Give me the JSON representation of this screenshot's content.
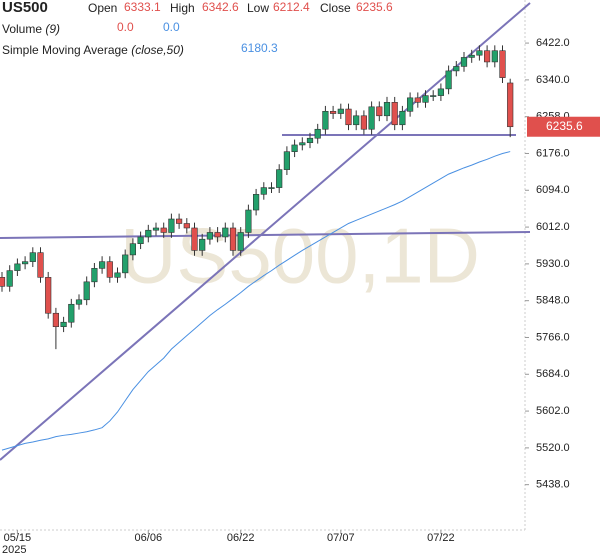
{
  "chart_data": {
    "type": "candlestick",
    "title": "US500",
    "ohlc_labels": [
      "Open",
      "High",
      "Low",
      "Close"
    ],
    "volume_label": "Volume",
    "volume_params": "(9)",
    "volume_values": [
      "0.0",
      "0.0"
    ],
    "sma_label": "Simple Moving Average",
    "sma_params": "(close,50)",
    "watermark": "US500,1D",
    "x_year": "2025",
    "up_color": "#22a06b",
    "down_color": "#e0504d",
    "sma_color": "#4a90e2",
    "categories": [
      null,
      null,
      "05/15",
      null,
      null,
      null,
      null,
      null,
      null,
      null,
      null,
      null,
      null,
      null,
      null,
      null,
      null,
      null,
      null,
      "06/06",
      null,
      null,
      null,
      null,
      null,
      null,
      null,
      null,
      null,
      null,
      null,
      "06/22",
      null,
      null,
      null,
      null,
      null,
      null,
      null,
      null,
      null,
      null,
      null,
      null,
      "07/07",
      null,
      null,
      null,
      null,
      null,
      null,
      null,
      null,
      null,
      null,
      null,
      null,
      "07/22",
      null,
      null,
      null,
      null,
      null,
      null,
      null,
      null,
      null
    ],
    "open": [
      5900,
      5880,
      5915,
      5930,
      5935,
      5955,
      5900,
      5820,
      5790,
      5800,
      5840,
      5850,
      5890,
      5920,
      5935,
      5900,
      5910,
      5950,
      5975,
      5990,
      6005,
      6010,
      6000,
      6030,
      6020,
      6010,
      5960,
      5985,
      6000,
      5990,
      6010,
      5960,
      6000,
      6050,
      6085,
      6100,
      6100,
      6140,
      6180,
      6195,
      6200,
      6210,
      6230,
      6270,
      6265,
      6275,
      6240,
      6260,
      6230,
      6280,
      6260,
      6290,
      6240,
      6270,
      6300,
      6290,
      6305,
      6305,
      6320,
      6360,
      6370,
      6390,
      6395,
      6405,
      6380,
      6405,
      6333.1
    ],
    "high": [
      5912,
      5927,
      5942,
      5947,
      5967,
      5967,
      5912,
      5832,
      5812,
      5852,
      5862,
      5902,
      5932,
      5947,
      5947,
      5922,
      5962,
      5987,
      6002,
      6017,
      6022,
      6022,
      6042,
      6042,
      6032,
      6022,
      5997,
      6012,
      6012,
      6022,
      6022,
      6012,
      6062,
      6097,
      6112,
      6112,
      6152,
      6192,
      6207,
      6212,
      6222,
      6242,
      6282,
      6282,
      6287,
      6287,
      6272,
      6272,
      6292,
      6292,
      6302,
      6302,
      6282,
      6312,
      6312,
      6317,
      6317,
      6332,
      6372,
      6382,
      6402,
      6407,
      6417,
      6417,
      6417,
      6417,
      6342.6
    ],
    "low": [
      5868,
      5868,
      5903,
      5918,
      5923,
      5888,
      5808,
      5740,
      5778,
      5788,
      5828,
      5838,
      5878,
      5908,
      5888,
      5888,
      5898,
      5938,
      5963,
      5978,
      5993,
      5988,
      5988,
      6008,
      5998,
      5948,
      5948,
      5973,
      5978,
      5978,
      5948,
      5948,
      5988,
      6038,
      6073,
      6088,
      6088,
      6128,
      6168,
      6183,
      6188,
      6198,
      6218,
      6253,
      6253,
      6228,
      6228,
      6218,
      6218,
      6248,
      6248,
      6228,
      6228,
      6258,
      6278,
      6278,
      6293,
      6293,
      6308,
      6348,
      6358,
      6378,
      6383,
      6368,
      6368,
      6333,
      6212.4
    ],
    "close": [
      5880,
      5915,
      5930,
      5935,
      5955,
      5900,
      5820,
      5790,
      5800,
      5840,
      5850,
      5890,
      5920,
      5935,
      5900,
      5910,
      5950,
      5975,
      5990,
      6005,
      6010,
      6000,
      6030,
      6020,
      6010,
      5960,
      5985,
      6000,
      5990,
      6010,
      5960,
      6000,
      6050,
      6085,
      6100,
      6100,
      6140,
      6180,
      6195,
      6200,
      6210,
      6230,
      6270,
      6265,
      6275,
      6240,
      6260,
      6230,
      6280,
      6260,
      6290,
      6240,
      6270,
      6300,
      6290,
      6305,
      6305,
      6320,
      6360,
      6370,
      6390,
      6395,
      6405,
      6380,
      6405,
      6345,
      6235.6
    ],
    "sma": [
      5515,
      5520,
      5525,
      5530,
      5533,
      5537,
      5540,
      5545,
      5548,
      5550,
      5553,
      5556,
      5560,
      5565,
      5580,
      5600,
      5625,
      5650,
      5670,
      5690,
      5705,
      5720,
      5740,
      5755,
      5770,
      5785,
      5800,
      5815,
      5828,
      5840,
      5853,
      5866,
      5880,
      5892,
      5904,
      5915,
      5927,
      5938,
      5949,
      5960,
      5970,
      5980,
      5990,
      6000,
      6010,
      6020,
      6027,
      6034,
      6041,
      6048,
      6055,
      6062,
      6070,
      6080,
      6090,
      6100,
      6110,
      6120,
      6130,
      6137,
      6144,
      6150,
      6157,
      6163,
      6170,
      6176,
      6180.3
    ],
    "ylim": [
      5337,
      6518
    ],
    "yticks": [
      {
        "value": 5438,
        "label": "5438.0"
      },
      {
        "value": 5520,
        "label": "5520.0"
      },
      {
        "value": 5602,
        "label": "5602.0"
      },
      {
        "value": 5684,
        "label": "5684.0"
      },
      {
        "value": 5766,
        "label": "5766.0"
      },
      {
        "value": 5848,
        "label": "5848.0"
      },
      {
        "value": 5930,
        "label": "5930.0"
      },
      {
        "value": 6012,
        "label": "6012.0"
      },
      {
        "value": 6094,
        "label": "6094.0"
      },
      {
        "value": 6176,
        "label": "6176.0"
      },
      {
        "value": 6258,
        "label": "6258.0"
      },
      {
        "value": 6340,
        "label": "6340.0"
      },
      {
        "value": 6422,
        "label": "6422.0"
      }
    ]
  }
}
